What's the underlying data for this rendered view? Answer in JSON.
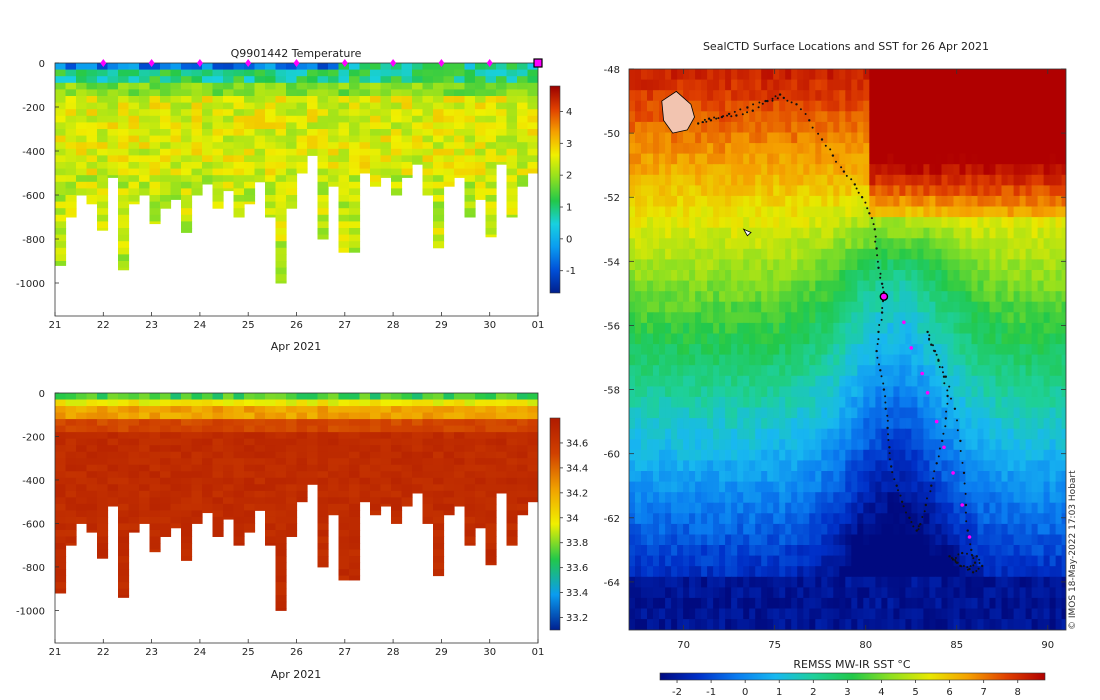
{
  "colors": {
    "temp_scale": [
      "#001f8c",
      "#0050d8",
      "#0a9cf0",
      "#18d0e0",
      "#22c84a",
      "#8fe020",
      "#f0f000",
      "#f5a000",
      "#e04000",
      "#9a0000"
    ],
    "salt_scale": [
      "#002090",
      "#0a9cf0",
      "#22c84a",
      "#f0f000",
      "#f0a000",
      "#d04000",
      "#b01a00"
    ],
    "sst_scale": [
      "#000a80",
      "#0030c8",
      "#0a7cf0",
      "#18b8f0",
      "#1ed09a",
      "#22c84a",
      "#8fe020",
      "#e8e800",
      "#f5a000",
      "#e04000",
      "#b00000"
    ],
    "track": "#111111",
    "marker": "#ff00ff",
    "land": "#f2c4b0"
  },
  "chart_data": [
    {
      "type": "heatmap",
      "title": "Q9901442  Temperature",
      "xlabel": "Apr 2021",
      "ylabel": "",
      "x_ticks": [
        "21",
        "22",
        "23",
        "24",
        "25",
        "26",
        "27",
        "28",
        "29",
        "30",
        "01"
      ],
      "y_ticks": [
        "0",
        "-200",
        "-400",
        "-600",
        "-800",
        "-1000"
      ],
      "ylim": [
        -1150,
        0
      ],
      "xlim": [
        21,
        31
      ],
      "colorbar": {
        "min": -1.7,
        "max": 4.8,
        "ticks": [
          "-1",
          "0",
          "1",
          "2",
          "3",
          "4"
        ]
      },
      "profile_max_depth": [
        920,
        700,
        600,
        640,
        760,
        520,
        940,
        640,
        600,
        730,
        660,
        620,
        770,
        600,
        550,
        660,
        580,
        700,
        640,
        540,
        700,
        1000,
        660,
        500,
        420,
        800,
        560,
        860,
        860,
        500,
        560,
        520,
        600,
        520,
        460,
        600,
        840,
        560,
        520,
        700,
        620,
        790,
        460,
        700,
        560,
        500
      ],
      "surface_markers_day": [
        22,
        23,
        24,
        25,
        26,
        27,
        28,
        29,
        30
      ],
      "current_day": 31
    },
    {
      "type": "heatmap",
      "title": "",
      "xlabel": "Apr 2021",
      "ylabel": "",
      "x_ticks": [
        "21",
        "22",
        "23",
        "24",
        "25",
        "26",
        "27",
        "28",
        "29",
        "30",
        "01"
      ],
      "y_ticks": [
        "0",
        "-200",
        "-400",
        "-600",
        "-800",
        "-1000"
      ],
      "ylim": [
        -1150,
        0
      ],
      "xlim": [
        21,
        31
      ],
      "colorbar": {
        "min": 33.1,
        "max": 34.8,
        "ticks": [
          "33.2",
          "33.4",
          "33.6",
          "33.8",
          "34",
          "34.2",
          "34.4",
          "34.6"
        ]
      },
      "profile_max_depth": [
        920,
        700,
        600,
        640,
        760,
        520,
        940,
        640,
        600,
        730,
        660,
        620,
        770,
        600,
        550,
        660,
        580,
        700,
        640,
        540,
        700,
        1000,
        660,
        500,
        420,
        800,
        560,
        860,
        860,
        500,
        560,
        520,
        600,
        520,
        460,
        600,
        840,
        560,
        520,
        700,
        620,
        790,
        460,
        700,
        560,
        500
      ]
    },
    {
      "type": "heatmap",
      "title": "SealCTD Surface Locations and SST for 26 Apr 2021",
      "xlabel": "",
      "ylabel": "",
      "x_ticks": [
        "70",
        "75",
        "80",
        "85",
        "90"
      ],
      "y_ticks": [
        "-48",
        "-50",
        "-52",
        "-54",
        "-56",
        "-58",
        "-60",
        "-62",
        "-64"
      ],
      "xlim": [
        67,
        91
      ],
      "ylim": [
        -65.5,
        -48
      ],
      "colorbar_label": "REMSS MW-IR SST °C",
      "colorbar": {
        "min": -2.5,
        "max": 8.8,
        "ticks": [
          "-2",
          "-1",
          "0",
          "1",
          "2",
          "3",
          "4",
          "5",
          "6",
          "7",
          "8"
        ]
      },
      "track": [
        [
          75.3,
          -48.8
        ],
        [
          74.6,
          -49.0
        ],
        [
          73.8,
          -49.3
        ],
        [
          72.9,
          -49.45
        ],
        [
          72.1,
          -49.5
        ],
        [
          71.4,
          -49.55
        ],
        [
          70.8,
          -49.7
        ],
        [
          71.5,
          -49.6
        ],
        [
          72.5,
          -49.4
        ],
        [
          73.5,
          -49.2
        ],
        [
          74.5,
          -49.0
        ],
        [
          75.5,
          -48.9
        ],
        [
          76.2,
          -49.1
        ],
        [
          76.9,
          -49.6
        ],
        [
          77.6,
          -50.2
        ],
        [
          78.2,
          -50.7
        ],
        [
          78.8,
          -51.2
        ],
        [
          79.4,
          -51.6
        ],
        [
          79.8,
          -52.0
        ],
        [
          80.2,
          -52.5
        ],
        [
          80.5,
          -53.0
        ],
        [
          80.6,
          -53.6
        ],
        [
          80.7,
          -54.2
        ],
        [
          80.9,
          -54.7
        ],
        [
          81.0,
          -55.1
        ],
        [
          80.9,
          -55.6
        ],
        [
          80.7,
          -56.2
        ],
        [
          80.6,
          -56.8
        ],
        [
          80.8,
          -57.4
        ],
        [
          81.0,
          -58.0
        ],
        [
          81.1,
          -58.6
        ],
        [
          81.2,
          -59.2
        ],
        [
          81.3,
          -59.8
        ],
        [
          81.4,
          -60.4
        ],
        [
          81.7,
          -61.0
        ],
        [
          82.0,
          -61.5
        ],
        [
          82.4,
          -62.0
        ],
        [
          82.8,
          -62.4
        ],
        [
          83.0,
          -62.2
        ],
        [
          83.3,
          -61.6
        ],
        [
          83.6,
          -61.0
        ],
        [
          83.9,
          -60.3
        ],
        [
          84.2,
          -59.6
        ],
        [
          84.4,
          -58.9
        ],
        [
          84.5,
          -58.2
        ],
        [
          84.3,
          -57.6
        ],
        [
          84.0,
          -57.1
        ],
        [
          83.6,
          -56.6
        ],
        [
          83.4,
          -56.2
        ],
        [
          83.8,
          -56.8
        ],
        [
          84.4,
          -57.6
        ],
        [
          84.9,
          -58.6
        ],
        [
          85.2,
          -59.6
        ],
        [
          85.4,
          -60.6
        ],
        [
          85.5,
          -61.6
        ],
        [
          85.6,
          -62.4
        ],
        [
          85.8,
          -63.0
        ],
        [
          86.0,
          -63.4
        ],
        [
          85.7,
          -63.6
        ],
        [
          85.2,
          -63.5
        ],
        [
          84.8,
          -63.3
        ],
        [
          85.3,
          -63.1
        ],
        [
          86.1,
          -63.2
        ],
        [
          86.4,
          -63.5
        ],
        [
          85.9,
          -63.7
        ],
        [
          85.0,
          -63.4
        ],
        [
          84.6,
          -63.2
        ]
      ],
      "daily_positions": [
        [
          82.1,
          -55.9
        ],
        [
          82.5,
          -56.7
        ],
        [
          83.1,
          -57.5
        ],
        [
          83.4,
          -58.1
        ],
        [
          83.9,
          -59.0
        ],
        [
          84.3,
          -59.8
        ],
        [
          84.8,
          -60.6
        ],
        [
          85.3,
          -61.6
        ],
        [
          85.7,
          -62.6
        ]
      ],
      "current_position": [
        81.0,
        -55.1
      ]
    }
  ],
  "credit": "© IMOS 18-May-2022 17:03 Hobart"
}
